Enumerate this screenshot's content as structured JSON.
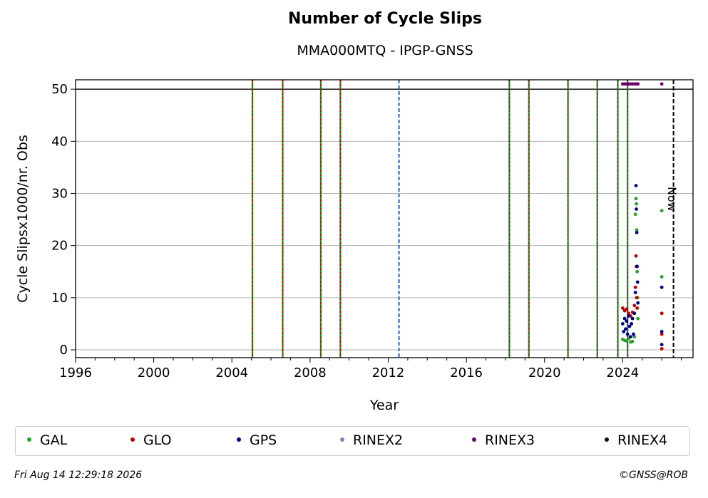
{
  "title": "Number of Cycle Slips",
  "subtitle": "MMA000MTQ - IPGP-GNSS",
  "footer": {
    "timestamp": "Fri Aug 14 12:29:18 2026",
    "copyright": "©GNSS@ROB"
  },
  "now_label": "Now",
  "colors": {
    "GAL": "#2ca02c",
    "GLO": "#c00000",
    "GPS": "#00008b",
    "RINEX2": "#8c7fc0",
    "RINEX3": "#6a006a",
    "RINEX4": "#1a001a",
    "event_red": "#c00000",
    "event_green": "#228b22",
    "event_blue": "#1f5fbf"
  },
  "legend": [
    {
      "name": "GAL",
      "color": "#2ca02c"
    },
    {
      "name": "GLO",
      "color": "#c00000"
    },
    {
      "name": "GPS",
      "color": "#00008b"
    },
    {
      "name": "RINEX2",
      "color": "#8c7fc0"
    },
    {
      "name": "RINEX3",
      "color": "#6a006a"
    },
    {
      "name": "RINEX4",
      "color": "#1a001a"
    }
  ],
  "chart_data": {
    "type": "scatter",
    "title": "Number of Cycle Slips",
    "subtitle": "MMA000MTQ - IPGP-GNSS",
    "xlabel": "Year",
    "ylabel": "Cycle Slipsx1000/nr. Obs",
    "xlim": [
      1996,
      2027.6
    ],
    "ylim": [
      -1.5,
      51.8
    ],
    "xticks": [
      1996,
      2000,
      2004,
      2008,
      2012,
      2016,
      2020,
      2024
    ],
    "yticks": [
      0,
      10,
      20,
      30,
      40,
      50
    ],
    "grid": "horizontal",
    "legend_position": "bottom",
    "ref_line_y": 50,
    "now_x": 2026.6,
    "event_lines": [
      {
        "x": 2005.05,
        "style": "red-green"
      },
      {
        "x": 2006.6,
        "style": "red-green"
      },
      {
        "x": 2008.55,
        "style": "red-green"
      },
      {
        "x": 2009.55,
        "style": "red-green"
      },
      {
        "x": 2012.55,
        "style": "blue"
      },
      {
        "x": 2018.2,
        "style": "red-green"
      },
      {
        "x": 2019.2,
        "style": "red-green"
      },
      {
        "x": 2021.2,
        "style": "red-green"
      },
      {
        "x": 2022.7,
        "style": "red-green"
      },
      {
        "x": 2023.75,
        "style": "red-green"
      },
      {
        "x": 2024.25,
        "style": "red-green"
      }
    ],
    "series": [
      {
        "name": "GAL",
        "points": [
          [
            2024.0,
            2.0
          ],
          [
            2024.1,
            1.8
          ],
          [
            2024.2,
            1.7
          ],
          [
            2024.3,
            2.2
          ],
          [
            2024.4,
            1.5
          ],
          [
            2024.5,
            1.6
          ],
          [
            2024.6,
            2.5
          ],
          [
            2024.65,
            26.0
          ],
          [
            2024.68,
            29.0
          ],
          [
            2024.7,
            28.0
          ],
          [
            2024.72,
            23.0
          ],
          [
            2024.74,
            15.0
          ],
          [
            2024.76,
            10.0
          ],
          [
            2024.78,
            6.0
          ],
          [
            2026.0,
            26.7
          ],
          [
            2026.0,
            14.0
          ],
          [
            2026.0,
            12.0
          ]
        ]
      },
      {
        "name": "GLO",
        "points": [
          [
            2024.0,
            8.0
          ],
          [
            2024.1,
            7.5
          ],
          [
            2024.2,
            7.8
          ],
          [
            2024.3,
            7.0
          ],
          [
            2024.4,
            6.5
          ],
          [
            2024.5,
            7.2
          ],
          [
            2024.6,
            8.5
          ],
          [
            2024.65,
            12.0
          ],
          [
            2024.68,
            18.0
          ],
          [
            2024.7,
            16.0
          ],
          [
            2024.72,
            10.0
          ],
          [
            2024.74,
            8.0
          ],
          [
            2026.0,
            7.0
          ],
          [
            2026.0,
            3.0
          ],
          [
            2026.0,
            0.2
          ]
        ]
      },
      {
        "name": "GPS",
        "points": [
          [
            2024.0,
            5.0
          ],
          [
            2024.05,
            3.5
          ],
          [
            2024.1,
            6.0
          ],
          [
            2024.15,
            4.0
          ],
          [
            2024.2,
            5.5
          ],
          [
            2024.25,
            3.0
          ],
          [
            2024.3,
            6.5
          ],
          [
            2024.35,
            4.5
          ],
          [
            2024.4,
            2.5
          ],
          [
            2024.45,
            5.0
          ],
          [
            2024.5,
            6.0
          ],
          [
            2024.55,
            3.0
          ],
          [
            2024.6,
            7.0
          ],
          [
            2024.65,
            11.0
          ],
          [
            2024.68,
            31.5
          ],
          [
            2024.7,
            27.0
          ],
          [
            2024.72,
            22.5
          ],
          [
            2024.74,
            16.0
          ],
          [
            2024.76,
            13.0
          ],
          [
            2024.78,
            9.0
          ],
          [
            2026.0,
            12.0
          ],
          [
            2026.0,
            3.5
          ],
          [
            2026.0,
            1.0
          ]
        ]
      },
      {
        "name": "RINEX2",
        "points": []
      },
      {
        "name": "RINEX3",
        "points": [
          [
            2024.0,
            51.0
          ],
          [
            2024.1,
            51.0
          ],
          [
            2024.2,
            51.0
          ],
          [
            2024.3,
            51.0
          ],
          [
            2024.4,
            51.0
          ],
          [
            2024.5,
            51.0
          ],
          [
            2024.6,
            51.0
          ],
          [
            2024.7,
            51.0
          ],
          [
            2024.78,
            51.0
          ],
          [
            2026.0,
            51.0
          ]
        ]
      },
      {
        "name": "RINEX4",
        "points": []
      }
    ]
  }
}
